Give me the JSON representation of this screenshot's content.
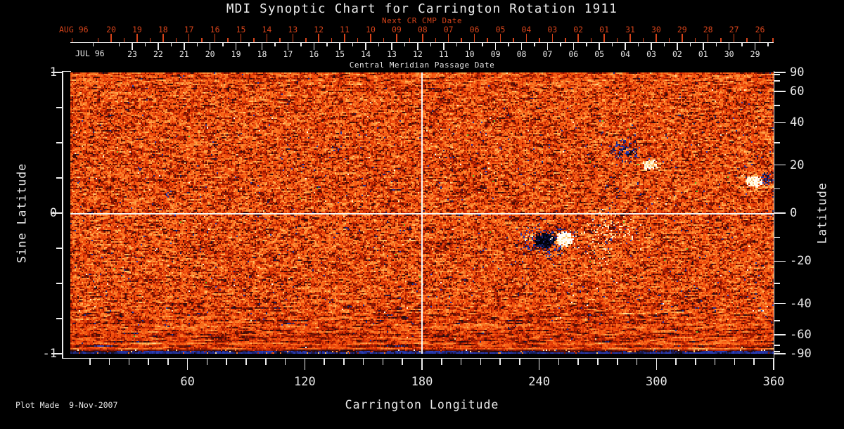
{
  "title": "MDI Synoptic Chart for Carrington Rotation 1911",
  "footer": "Plot Made  9-Nov-2007",
  "top_axis": {
    "subtitle": "Next CR CMP Date",
    "row1_label": "AUG 96",
    "row2_label": "JUL 96",
    "axis_label": "Central Meridian Passage Date"
  },
  "left_axis": {
    "label": "Sine Latitude"
  },
  "right_axis": {
    "label": "Latitude"
  },
  "bottom_axis": {
    "label": "Carrington Longitude"
  },
  "colors": {
    "background": "#000000",
    "text_white": "#e8e8e8",
    "accent_red": "#d6431a",
    "axis_white": "#ededed",
    "crosshair_white": "#f6f6f6",
    "base_orange": "#ea4008"
  },
  "chart_data": {
    "type": "heatmap",
    "title": "MDI Synoptic Chart for Carrington Rotation 1911",
    "description_visible": "Full-Sun magnetic synoptic map, orange/red base with dark (negative) and white (positive) magnetic regions",
    "x_bottom": {
      "label": "Carrington Longitude",
      "range": [
        0,
        360
      ],
      "tick_values": [
        60,
        120,
        180,
        240,
        300,
        360
      ],
      "tick_labels": [
        "60",
        "120",
        "180",
        "240",
        "300",
        "360"
      ],
      "minor_step": 10
    },
    "y_left": {
      "label": "Sine Latitude",
      "range": [
        -1,
        1
      ],
      "tick_values": [
        1,
        0,
        -1
      ],
      "tick_labels": [
        "1",
        "0",
        "-1"
      ],
      "minor_ticks": [
        0.75,
        0.5,
        0.25,
        -0.25,
        -0.5,
        -0.75
      ]
    },
    "y_right": {
      "label": "Latitude",
      "tick_values": [
        90,
        60,
        40,
        20,
        0,
        -20,
        -40,
        -60,
        -90
      ],
      "tick_labels": [
        "90",
        "60",
        "40",
        "20",
        "0",
        "-20",
        "-40",
        "-60",
        "-90"
      ],
      "minor_tick_values": [
        80,
        70,
        50,
        30,
        10,
        -10,
        -30,
        -50,
        -70,
        -80
      ]
    },
    "top_dates": {
      "next_cr_month": "AUG 96",
      "next_cr": [
        "20",
        "19",
        "18",
        "17",
        "16",
        "15",
        "14",
        "13",
        "12",
        "11",
        "10",
        "09",
        "08",
        "07",
        "06",
        "05",
        "04",
        "03",
        "02",
        "01",
        "31",
        "30",
        "29",
        "28",
        "27",
        "26"
      ],
      "cmp_month": "JUL 96",
      "cmp": [
        "23",
        "22",
        "21",
        "20",
        "19",
        "18",
        "17",
        "16",
        "15",
        "14",
        "13",
        "12",
        "11",
        "10",
        "09",
        "08",
        "07",
        "06",
        "05",
        "04",
        "03",
        "02",
        "01",
        "30",
        "29"
      ],
      "axis_label": "Central Meridian Passage Date"
    },
    "crosshair": {
      "longitude": 180,
      "latitude": 0
    },
    "features": [
      {
        "name": "ar-negative-speckle-cloud",
        "lon": 243.4,
        "sin": -0.19,
        "rlon": 18.7,
        "rsin": 0.14,
        "kind": "speckle",
        "p": 0.3,
        "amp": -0.55
      },
      {
        "name": "ar-negative-core",
        "lon": 242.6,
        "sin": -0.19,
        "rlon": 5.8,
        "rsin": 0.06,
        "kind": "fill",
        "p": 0.9,
        "amp": -0.85
      },
      {
        "name": "ar-positive-core",
        "lon": 252.7,
        "sin": -0.18,
        "rlon": 4.7,
        "rsin": 0.055,
        "kind": "fill",
        "p": 0.9,
        "amp": 0.95
      },
      {
        "name": "ar-positive-halo",
        "lon": 252.7,
        "sin": -0.19,
        "rlon": 7.9,
        "rsin": 0.08,
        "kind": "speckle",
        "p": 0.22,
        "amp": 0.6
      },
      {
        "name": "plage-east",
        "lon": 275,
        "sin": -0.12,
        "rlon": 15.8,
        "rsin": 0.17,
        "kind": "speckle",
        "p": 0.16,
        "amp": 0.72
      },
      {
        "name": "plage-east-neg-mix",
        "lon": 275,
        "sin": -0.12,
        "rlon": 15.8,
        "rsin": 0.17,
        "kind": "speckle",
        "p": 0.05,
        "amp": -0.5
      },
      {
        "name": "plage-east-south",
        "lon": 270,
        "sin": -0.3,
        "rlon": 8.6,
        "rsin": 0.09,
        "kind": "speckle",
        "p": 0.13,
        "amp": 0.7
      },
      {
        "name": "plage-west-of-core",
        "lon": 234,
        "sin": -0.17,
        "rlon": 3.6,
        "rsin": 0.04,
        "kind": "speckle",
        "p": 0.25,
        "amp": 0.65
      },
      {
        "name": "north-negative-region",
        "lon": 283.7,
        "sin": 0.45,
        "rlon": 9.4,
        "rsin": 0.1,
        "kind": "speckle",
        "p": 0.42,
        "amp": -0.6
      },
      {
        "name": "north-negative-core",
        "lon": 285.1,
        "sin": 0.43,
        "rlon": 4.3,
        "rsin": 0.05,
        "kind": "speckle",
        "p": 0.35,
        "amp": -0.8
      },
      {
        "name": "north-positive-patch",
        "lon": 296.6,
        "sin": 0.35,
        "rlon": 4.3,
        "rsin": 0.04,
        "kind": "fill",
        "p": 0.75,
        "amp": 0.85
      },
      {
        "name": "north-positive-halo",
        "lon": 296.6,
        "sin": 0.35,
        "rlon": 6.5,
        "rsin": 0.06,
        "kind": "speckle",
        "p": 0.2,
        "amp": 0.55
      },
      {
        "name": "east-limb-positive-patch",
        "lon": 349.9,
        "sin": 0.23,
        "rlon": 4.3,
        "rsin": 0.045,
        "kind": "fill",
        "p": 0.8,
        "amp": 0.9
      },
      {
        "name": "east-limb-positive-halo",
        "lon": 348.5,
        "sin": 0.22,
        "rlon": 7.9,
        "rsin": 0.08,
        "kind": "speckle",
        "p": 0.15,
        "amp": 0.6
      },
      {
        "name": "east-limb-negative-patch",
        "lon": 356.4,
        "sin": 0.25,
        "rlon": 3.6,
        "rsin": 0.05,
        "kind": "speckle",
        "p": 0.75,
        "amp": -0.65
      },
      {
        "name": "speckle-cluster-1",
        "lon": 136.8,
        "sin": 0.47,
        "rlon": 4.3,
        "rsin": 0.04,
        "kind": "speckle",
        "p": 0.3,
        "amp": -0.5
      },
      {
        "name": "speckle-cluster-2",
        "lon": 50.4,
        "sin": 0.14,
        "rlon": 3.6,
        "rsin": 0.03,
        "kind": "speckle",
        "p": 0.3,
        "amp": -0.5
      },
      {
        "name": "speckle-cluster-3",
        "lon": 188.6,
        "sin": 0.2,
        "rlon": 3.6,
        "rsin": 0.03,
        "kind": "speckle",
        "p": 0.25,
        "amp": -0.5
      },
      {
        "name": "speckle-cluster-4",
        "lon": 162,
        "sin": 0.28,
        "rlon": 2.9,
        "rsin": 0.03,
        "kind": "speckle",
        "p": 0.25,
        "amp": -0.5
      },
      {
        "name": "speckle-cluster-5",
        "lon": 86.4,
        "sin": 0.16,
        "rlon": 2.9,
        "rsin": 0.03,
        "kind": "speckle",
        "p": 0.2,
        "amp": -0.5
      }
    ],
    "render": {
      "seed": 19110,
      "noise": {
        "base_bias": 0.03,
        "broad_amp": 0.5,
        "fine_amp": 0.16,
        "speckle_neg_p": 0.0045,
        "speckle_pos_p": 0.002,
        "green_speck_p": 0.00045
      },
      "colormap": [
        [
          -1.0,
          0,
          0,
          0
        ],
        [
          -0.8,
          8,
          8,
          30
        ],
        [
          -0.62,
          45,
          65,
          190
        ],
        [
          -0.52,
          30,
          42,
          140
        ],
        [
          -0.45,
          30,
          10,
          20
        ],
        [
          -0.34,
          70,
          12,
          4
        ],
        [
          -0.2,
          140,
          22,
          2
        ],
        [
          -0.08,
          200,
          40,
          3
        ],
        [
          0.0,
          234,
          64,
          8
        ],
        [
          0.1,
          246,
          90,
          18
        ],
        [
          0.22,
          250,
          118,
          36
        ],
        [
          0.36,
          252,
          152,
          64
        ],
        [
          0.5,
          254,
          190,
          95
        ],
        [
          0.65,
          255,
          222,
          150
        ],
        [
          0.8,
          255,
          245,
          215
        ],
        [
          0.88,
          255,
          255,
          248
        ],
        [
          1.0,
          255,
          255,
          255
        ]
      ],
      "green_speck_rgb": [
        80,
        190,
        40
      ]
    }
  }
}
